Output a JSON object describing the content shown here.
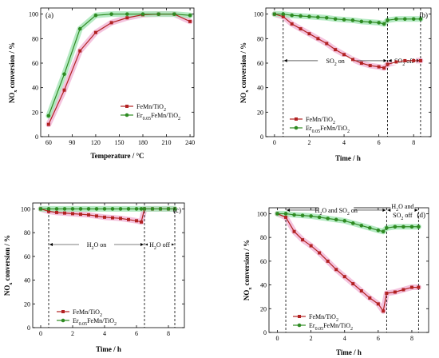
{
  "colors": {
    "series1": "#b22222",
    "series2": "#2e8b22",
    "band1": "#f2b8d8",
    "band2": "#a8e6b8"
  },
  "chart_data": [
    {
      "type": "line",
      "panel": "(a)",
      "xlabel": "Temperature / °C",
      "ylabel_main": "NO",
      "ylabel_sub": "x",
      "ylabel_rest": " conversion / %",
      "xlim": [
        50,
        245
      ],
      "ylim": [
        0,
        105
      ],
      "xticks": [
        60,
        90,
        120,
        150,
        180,
        210,
        240
      ],
      "yticks": [
        0,
        20,
        40,
        60,
        80,
        100
      ],
      "legend_pos": "bottom-right",
      "series": [
        {
          "name_main": "FeMn/TiO",
          "name_sub": "2",
          "name_pre": "",
          "name_pre_sub": "",
          "marker": "square",
          "x": [
            60,
            80,
            100,
            120,
            140,
            160,
            180,
            200,
            220,
            240
          ],
          "y": [
            10,
            38,
            70,
            85,
            93,
            97,
            99.5,
            100,
            100,
            94
          ]
        },
        {
          "name_main": "FeMn/TiO",
          "name_sub": "2",
          "name_pre": "Er",
          "name_pre_sub": "0.05",
          "marker": "circle",
          "x": [
            60,
            80,
            100,
            120,
            140,
            160,
            180,
            200,
            220,
            240
          ],
          "y": [
            17,
            51,
            88,
            99,
            100,
            100,
            100,
            100,
            100,
            99
          ]
        }
      ]
    },
    {
      "type": "line",
      "panel": "(b)",
      "xlabel": "Time / h",
      "ylabel_main": "NO",
      "ylabel_sub": "x",
      "ylabel_rest": " conversion / %",
      "xlim": [
        -0.5,
        9
      ],
      "ylim": [
        0,
        105
      ],
      "xticks": [
        0,
        2,
        4,
        6,
        8
      ],
      "yticks": [
        0,
        20,
        40,
        60,
        80,
        100
      ],
      "vlines": [
        0.5,
        6.5,
        8.4
      ],
      "annotations": [
        {
          "text_main": "SO",
          "text_sub": "2",
          "text_rest": " on",
          "x_from": 0.5,
          "x_to": 6.5,
          "y": 62
        },
        {
          "text_main": "SO",
          "text_sub": "2",
          "text_rest": " off",
          "x_from": 6.5,
          "x_to": 8.4,
          "y": 62
        }
      ],
      "legend_pos": "bottom-left",
      "series": [
        {
          "name_main": "FeMn/TiO",
          "name_sub": "2",
          "name_pre": "",
          "name_pre_sub": "",
          "marker": "square",
          "x": [
            0,
            0.5,
            1,
            1.5,
            2,
            2.5,
            3,
            3.5,
            4,
            4.5,
            5,
            5.5,
            6,
            6.3,
            6.5,
            7,
            7.5,
            8,
            8.4
          ],
          "y": [
            100,
            98,
            92,
            88,
            84,
            80,
            76,
            71,
            67,
            63,
            60,
            58,
            57,
            56,
            59,
            61,
            62,
            62,
            62
          ]
        },
        {
          "name_main": "FeMn/TiO",
          "name_sub": "2",
          "name_pre": "Er",
          "name_pre_sub": "0.05",
          "marker": "circle",
          "x": [
            0,
            0.5,
            1,
            1.5,
            2,
            2.5,
            3,
            3.5,
            4,
            4.5,
            5,
            5.5,
            6,
            6.3,
            6.5,
            7,
            7.5,
            8,
            8.4
          ],
          "y": [
            100,
            100,
            99,
            98.5,
            98,
            97.5,
            97,
            96,
            95.5,
            95,
            94,
            93.5,
            93,
            92,
            95,
            96,
            96,
            96,
            96
          ]
        }
      ]
    },
    {
      "type": "line",
      "panel": "(c)",
      "xlabel": "Time / h",
      "ylabel_main": "NO",
      "ylabel_sub": "x",
      "ylabel_rest": " conversion / %",
      "xlim": [
        -0.5,
        9
      ],
      "ylim": [
        0,
        105
      ],
      "xticks": [
        0,
        2,
        4,
        6,
        8
      ],
      "yticks": [
        0,
        20,
        40,
        60,
        80,
        100
      ],
      "vlines": [
        0.5,
        6.5,
        8.4
      ],
      "annotations": [
        {
          "text_main": "H",
          "text_sub": "2",
          "text_rest": "O  on",
          "x_from": 0.5,
          "x_to": 6.5,
          "y": 70
        },
        {
          "text_main": "H",
          "text_sub": "2",
          "text_rest": "O off",
          "x_from": 6.5,
          "x_to": 8.4,
          "y": 70
        }
      ],
      "legend_pos": "bottom-left",
      "series": [
        {
          "name_main": "FeMn/TiO",
          "name_sub": "2",
          "name_pre": "",
          "name_pre_sub": "",
          "marker": "square",
          "x": [
            0,
            0.5,
            1,
            1.5,
            2,
            2.5,
            3,
            3.5,
            4,
            4.5,
            5,
            5.5,
            6,
            6.3,
            6.5,
            7,
            7.5,
            8,
            8.4
          ],
          "y": [
            100,
            98,
            97,
            96.5,
            96,
            95.5,
            95,
            94,
            93,
            92.5,
            92,
            91,
            90,
            89,
            100,
            100,
            100,
            100,
            100
          ]
        },
        {
          "name_main": "FeMn/TiO",
          "name_sub": "2",
          "name_pre": "Er",
          "name_pre_sub": "0.05",
          "marker": "circle",
          "x": [
            0,
            0.5,
            1,
            1.5,
            2,
            2.5,
            3,
            3.5,
            4,
            4.5,
            5,
            5.5,
            6,
            6.3,
            6.5,
            7,
            7.5,
            8,
            8.4
          ],
          "y": [
            100,
            100,
            100,
            100,
            100,
            100,
            100,
            100,
            100,
            100,
            100,
            100,
            100,
            100,
            100,
            100,
            100,
            100,
            100
          ]
        }
      ]
    },
    {
      "type": "line",
      "panel": "(d)",
      "xlabel": "Time / h",
      "ylabel_main": "NO",
      "ylabel_sub": "x",
      "ylabel_rest": " conversion / %",
      "xlim": [
        -0.5,
        9
      ],
      "ylim": [
        0,
        105
      ],
      "xticks": [
        0,
        2,
        4,
        6,
        8
      ],
      "yticks": [
        0,
        20,
        40,
        60,
        80,
        100
      ],
      "vlines": [
        0.5,
        6.5,
        8.4
      ],
      "annotations": [
        {
          "text_main": "H",
          "text_sub": "2",
          "text_rest": "O and SO",
          "text_sub2": "2",
          "text_rest2": " on",
          "x_from": 0.5,
          "x_to": 6.5,
          "y": 103
        },
        {
          "text_main": "H",
          "text_sub": "2",
          "text_rest": "O and",
          "line2_main": "SO",
          "line2_sub": "2",
          "line2_rest": " off",
          "x_from": 6.5,
          "x_to": 8.4,
          "y": 103
        }
      ],
      "legend_pos": "bottom-left",
      "series": [
        {
          "name_main": "FeMn/TiO",
          "name_sub": "2",
          "name_pre": "",
          "name_pre_sub": "",
          "marker": "square",
          "x": [
            0,
            0.5,
            1,
            1.5,
            2,
            2.5,
            3,
            3.5,
            4,
            4.5,
            5,
            5.5,
            6,
            6.3,
            6.5,
            7,
            7.5,
            8,
            8.4
          ],
          "y": [
            100,
            97,
            85,
            78,
            73,
            67,
            60,
            53,
            47,
            41,
            35,
            29,
            24,
            18,
            33,
            34,
            36,
            38,
            38
          ]
        },
        {
          "name_main": "FeMn/TiO",
          "name_sub": "2",
          "name_pre": "Er",
          "name_pre_sub": "0.05",
          "marker": "circle",
          "x": [
            0,
            0.5,
            1,
            1.5,
            2,
            2.5,
            3,
            3.5,
            4,
            4.5,
            5,
            5.5,
            6,
            6.3,
            6.5,
            7,
            7.5,
            8,
            8.4
          ],
          "y": [
            100,
            100,
            99,
            98.5,
            98,
            97,
            96,
            95,
            94,
            92,
            90,
            88,
            86,
            85,
            88,
            89,
            89,
            89,
            89
          ]
        }
      ]
    }
  ]
}
